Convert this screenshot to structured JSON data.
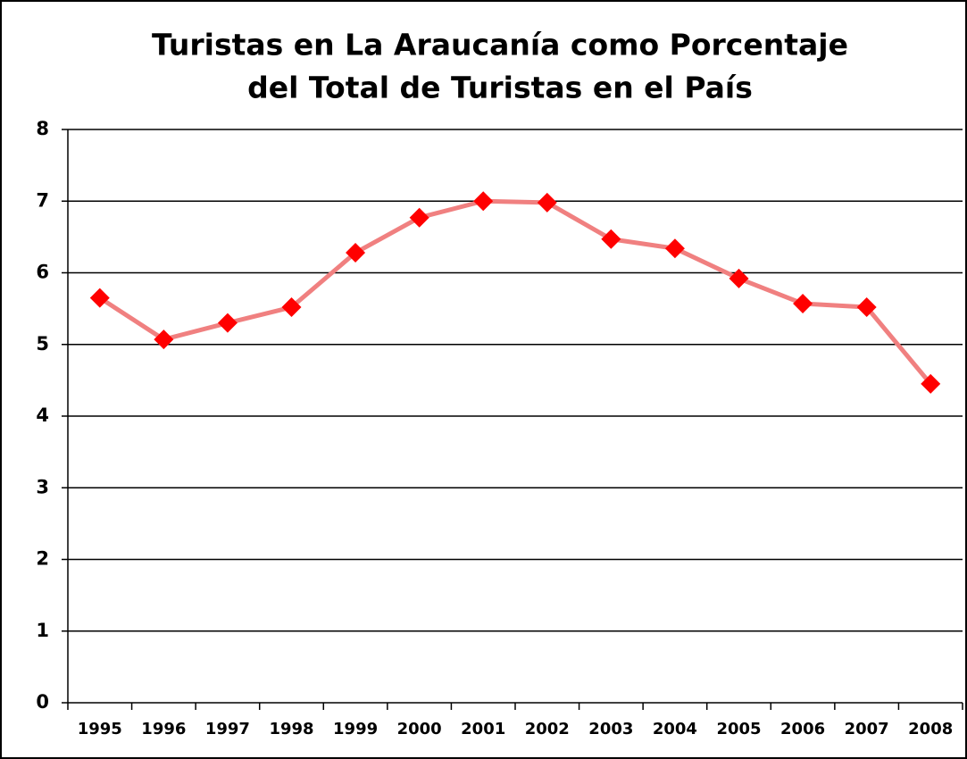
{
  "chart_data": {
    "type": "line",
    "title": [
      "Turistas en La Araucanía como Porcentaje",
      "del Total de Turistas en el País"
    ],
    "categories": [
      "1995",
      "1996",
      "1997",
      "1998",
      "1999",
      "2000",
      "2001",
      "2002",
      "2003",
      "2004",
      "2005",
      "2006",
      "2007",
      "2008"
    ],
    "series": [
      {
        "name": null,
        "color": "#f08080",
        "marker_color": "#ff0000",
        "values": [
          5.65,
          5.07,
          5.3,
          5.52,
          6.28,
          6.77,
          7.0,
          6.98,
          6.47,
          6.34,
          5.92,
          5.57,
          5.52,
          4.45
        ]
      }
    ],
    "ylim": [
      0,
      8
    ],
    "yticks": [
      0,
      1,
      2,
      3,
      4,
      5,
      6,
      7,
      8
    ],
    "grid": true
  }
}
